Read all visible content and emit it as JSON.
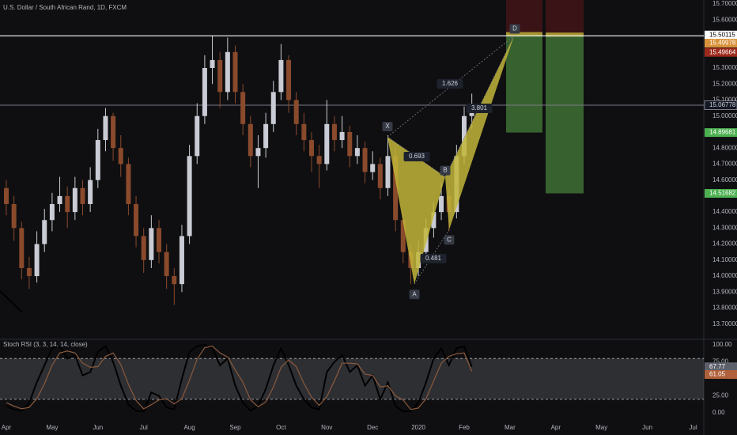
{
  "chart_data": [
    {
      "type": "candlestick",
      "title": "U.S. Dollar / South African Rand, 1D, FXCM",
      "categories": [
        "Apr",
        null,
        null,
        null,
        null,
        null,
        "May",
        null,
        null,
        null,
        null,
        null,
        "Jun",
        null,
        null,
        null,
        null,
        null,
        "Jul",
        null,
        null,
        null,
        null,
        null,
        "Aug",
        null,
        null,
        null,
        null,
        null,
        "Sep",
        null,
        null,
        null,
        null,
        null,
        "Oct",
        null,
        null,
        null,
        null,
        null,
        "Nov",
        null,
        null,
        null,
        null,
        null,
        "Dec",
        null,
        null,
        null,
        null,
        null,
        "2020",
        null,
        null,
        null,
        null,
        null,
        "Feb",
        null,
        null,
        null,
        null,
        null,
        "Mar",
        null,
        null,
        null,
        null,
        null,
        "Apr",
        null,
        null,
        null,
        null,
        null,
        "May",
        null,
        null,
        null,
        null,
        null,
        "Jun",
        null,
        null,
        null,
        null,
        null,
        "Jul"
      ],
      "ohlc": [
        [
          14.55,
          14.6,
          14.38,
          14.45
        ],
        [
          14.45,
          14.5,
          14.22,
          14.3
        ],
        [
          14.3,
          14.34,
          13.98,
          14.05
        ],
        [
          14.05,
          14.12,
          13.92,
          14.0
        ],
        [
          14.0,
          14.28,
          13.96,
          14.2
        ],
        [
          14.2,
          14.42,
          14.15,
          14.35
        ],
        [
          14.35,
          14.52,
          14.28,
          14.45
        ],
        [
          14.45,
          14.62,
          14.4,
          14.5
        ],
        [
          14.5,
          14.56,
          14.3,
          14.4
        ],
        [
          14.4,
          14.62,
          14.35,
          14.55
        ],
        [
          14.55,
          14.6,
          14.38,
          14.45
        ],
        [
          14.45,
          14.68,
          14.4,
          14.6
        ],
        [
          14.6,
          14.92,
          14.55,
          14.85
        ],
        [
          14.85,
          15.05,
          14.78,
          15.0
        ],
        [
          15.0,
          15.02,
          14.72,
          14.8
        ],
        [
          14.8,
          14.88,
          14.62,
          14.7
        ],
        [
          14.7,
          14.74,
          14.38,
          14.45
        ],
        [
          14.45,
          14.5,
          14.18,
          14.25
        ],
        [
          14.25,
          14.3,
          14.02,
          14.1
        ],
        [
          14.1,
          14.38,
          14.05,
          14.3
        ],
        [
          14.3,
          14.35,
          14.08,
          14.15
        ],
        [
          14.15,
          14.2,
          13.92,
          14.0
        ],
        [
          14.0,
          14.05,
          13.82,
          13.95
        ],
        [
          13.95,
          14.32,
          13.9,
          14.25
        ],
        [
          14.25,
          14.82,
          14.2,
          14.75
        ],
        [
          14.75,
          15.08,
          14.7,
          15.0
        ],
        [
          15.0,
          15.38,
          14.95,
          15.3
        ],
        [
          15.3,
          15.5,
          15.2,
          15.35
        ],
        [
          15.35,
          15.4,
          15.05,
          15.15
        ],
        [
          15.15,
          15.49,
          15.1,
          15.4
        ],
        [
          15.4,
          15.44,
          15.08,
          15.15
        ],
        [
          15.15,
          15.2,
          14.88,
          14.95
        ],
        [
          14.95,
          15.0,
          14.68,
          14.75
        ],
        [
          14.75,
          14.88,
          14.55,
          14.8
        ],
        [
          14.8,
          15.02,
          14.74,
          14.95
        ],
        [
          14.95,
          15.22,
          14.9,
          15.15
        ],
        [
          15.15,
          15.45,
          15.1,
          15.35
        ],
        [
          15.35,
          15.38,
          15.02,
          15.1
        ],
        [
          15.1,
          15.15,
          14.88,
          14.95
        ],
        [
          14.95,
          15.02,
          14.78,
          14.85
        ],
        [
          14.85,
          14.9,
          14.65,
          14.75
        ],
        [
          14.75,
          14.82,
          14.55,
          14.7
        ],
        [
          14.7,
          15.1,
          14.66,
          14.95
        ],
        [
          14.95,
          15.0,
          14.78,
          14.85
        ],
        [
          14.85,
          15.0,
          14.8,
          14.9
        ],
        [
          14.9,
          14.94,
          14.68,
          14.75
        ],
        [
          14.75,
          14.88,
          14.7,
          14.8
        ],
        [
          14.8,
          14.84,
          14.58,
          14.65
        ],
        [
          14.65,
          14.78,
          14.6,
          14.7
        ],
        [
          14.7,
          14.74,
          14.48,
          14.55
        ],
        [
          14.55,
          14.88,
          14.5,
          14.75
        ],
        [
          14.75,
          14.8,
          14.28,
          14.35
        ],
        [
          14.35,
          14.4,
          14.08,
          14.15
        ],
        [
          14.15,
          14.2,
          13.95,
          14.05
        ],
        [
          14.05,
          14.22,
          14.0,
          14.15
        ],
        [
          14.15,
          14.36,
          14.1,
          14.3
        ],
        [
          14.3,
          14.46,
          14.24,
          14.4
        ],
        [
          14.4,
          14.58,
          14.35,
          14.5
        ],
        [
          14.5,
          14.55,
          14.28,
          14.4
        ],
        [
          14.4,
          14.82,
          14.36,
          14.75
        ],
        [
          14.75,
          15.06,
          14.7,
          15.0
        ],
        [
          15.0,
          15.14,
          14.92,
          15.06778
        ],
        null,
        null,
        null,
        null,
        null,
        null,
        null,
        null,
        null,
        null,
        null,
        null,
        null,
        null,
        null,
        null,
        null,
        null,
        null,
        null,
        null,
        null,
        null,
        null,
        null,
        null,
        null,
        null,
        null
      ],
      "up_color": "#c9ccd4",
      "down_color": "#8a4a2c",
      "ylim": [
        13.61,
        15.725
      ],
      "yticks": [
        {
          "value": 13.7,
          "label": "13.70000"
        },
        {
          "value": 13.8,
          "label": "13.80000"
        },
        {
          "value": 13.9,
          "label": "13.90000"
        },
        {
          "value": 14.0,
          "label": "14.00000"
        },
        {
          "value": 14.1,
          "label": "14.10000"
        },
        {
          "value": 14.2,
          "label": "14.20000"
        },
        {
          "value": 14.3,
          "label": "14.30000"
        },
        {
          "value": 14.4,
          "label": "14.40000"
        },
        {
          "value": 14.6,
          "label": "14.60000"
        },
        {
          "value": 14.7,
          "label": "14.70000"
        },
        {
          "value": 14.8,
          "label": "14.80000"
        },
        {
          "value": 15.0,
          "label": "15.00000"
        },
        {
          "value": 15.1,
          "label": "15.10000"
        },
        {
          "value": 15.2,
          "label": "15.20000"
        },
        {
          "value": 15.3,
          "label": "15.30000"
        },
        {
          "value": 15.6,
          "label": "15.60000"
        },
        {
          "value": 15.7,
          "label": "15.70000"
        }
      ],
      "price_line": {
        "value": 15.50115,
        "color": "#ffffff"
      },
      "last_color": "#787b86",
      "positions": [
        {
          "entry": 15.49978,
          "target": 14.89681,
          "entry_color": "#d8923a"
        },
        {
          "entry": 15.49664,
          "target": 14.51682,
          "entry_color": "#9c2a1c"
        }
      ],
      "profit_color": "#3c6a32",
      "stop_color": "#3f1418",
      "target_label_color": "#4caf50",
      "pattern": {
        "points": [
          {
            "label": "X",
            "price": 14.87
          },
          {
            "label": "A",
            "price": 13.95
          },
          {
            "label": "B",
            "price": 14.62
          },
          {
            "label": "C",
            "price": 14.29
          },
          {
            "label": "D",
            "price": 15.5
          }
        ],
        "ratios": [
          0.693,
          0.481,
          1.626,
          3.801
        ],
        "color": "#c2b53a"
      }
    },
    {
      "type": "line",
      "title": "Stoch RSI (3, 3, 14, 14, close)",
      "series": [
        {
          "color": "#000000",
          "values": [
            10,
            5,
            3,
            15,
            45,
            70,
            95,
            98,
            80,
            85,
            55,
            60,
            90,
            98,
            75,
            40,
            12,
            3,
            2,
            30,
            25,
            8,
            5,
            50,
            90,
            98,
            100,
            95,
            70,
            80,
            40,
            15,
            3,
            10,
            35,
            70,
            95,
            70,
            40,
            20,
            8,
            5,
            60,
            75,
            85,
            60,
            70,
            40,
            55,
            20,
            45,
            10,
            2,
            3,
            15,
            45,
            80,
            95,
            70,
            95,
            98,
            67.77
          ],
          "label_color": "#5d606b"
        },
        {
          "color": "#8b5a3c",
          "values": [
            15,
            10,
            6,
            8,
            21,
            43,
            70,
            88,
            91,
            88,
            73,
            67,
            68,
            83,
            88,
            71,
            42,
            18,
            6,
            12,
            19,
            21,
            13,
            21,
            48,
            79,
            96,
            98,
            88,
            82,
            63,
            45,
            19,
            9,
            16,
            38,
            67,
            78,
            68,
            43,
            23,
            11,
            24,
            47,
            73,
            73,
            72,
            57,
            55,
            38,
            40,
            25,
            19,
            5,
            7,
            21,
            47,
            73,
            83,
            87,
            88,
            61.05
          ],
          "label_color": "#b0603a"
        }
      ],
      "ylim": [
        -11.6,
        107
      ],
      "yticks": [
        {
          "value": 100,
          "label": "100.00"
        },
        {
          "value": 75,
          "label": "75.00"
        },
        {
          "value": 25,
          "label": "25.00"
        },
        {
          "value": 0,
          "label": "0.00"
        }
      ],
      "bands": [
        20,
        80
      ]
    }
  ]
}
